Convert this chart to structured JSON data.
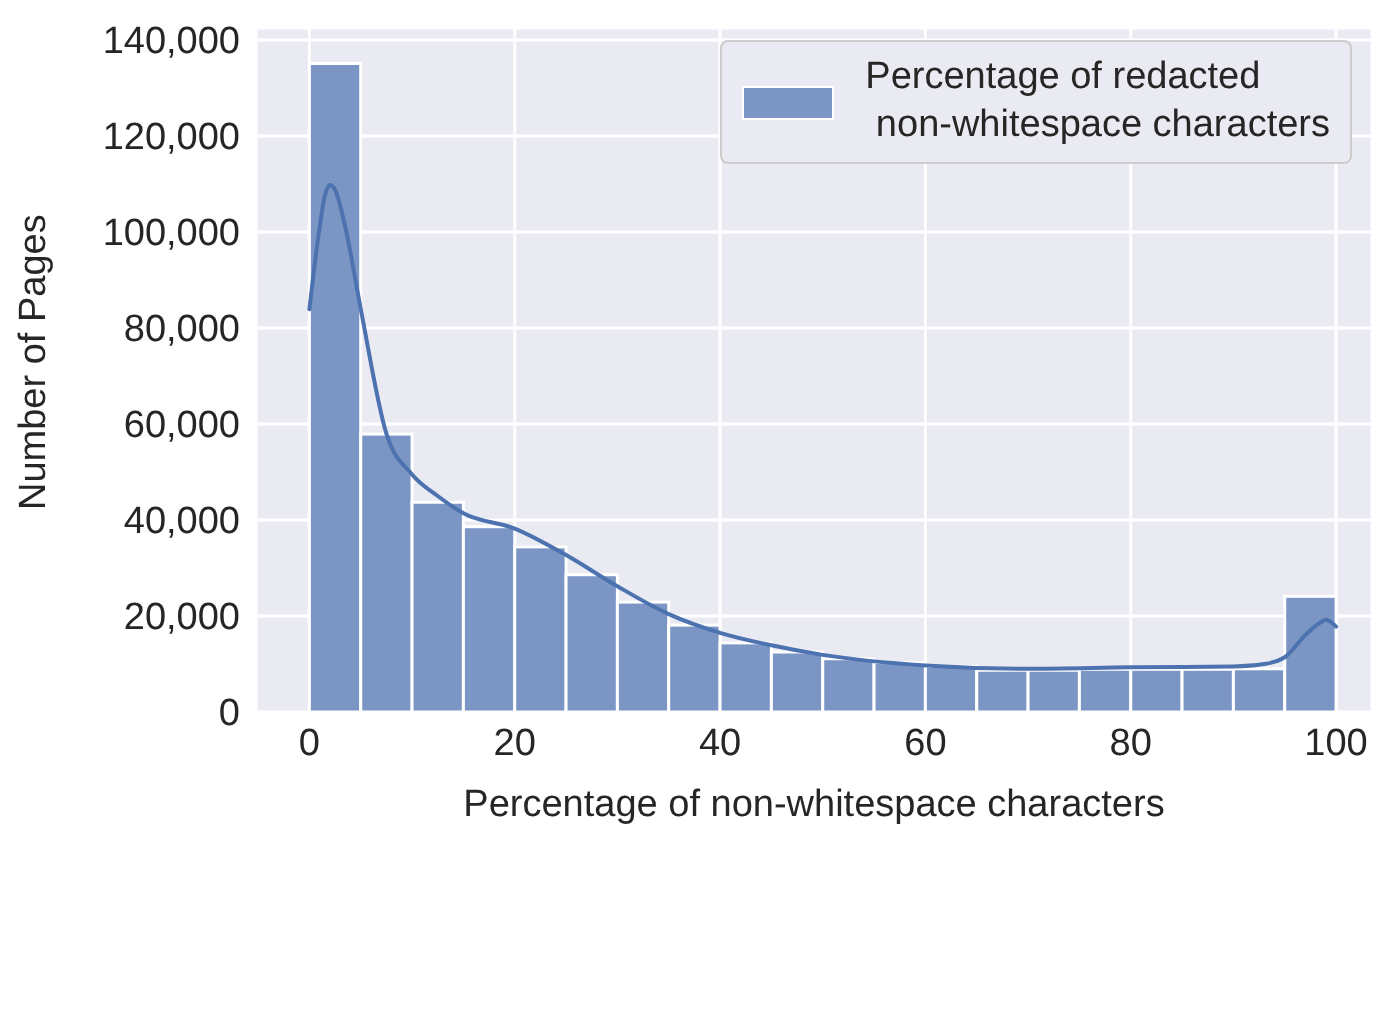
{
  "chart_data": {
    "type": "histogram",
    "xlabel": "Percentage of non-whitespace characters",
    "ylabel": "Number of Pages",
    "bins": [
      0,
      5,
      10,
      15,
      20,
      25,
      30,
      35,
      40,
      45,
      50,
      55,
      60,
      65,
      70,
      75,
      80,
      85,
      90,
      95,
      100
    ],
    "series": [
      {
        "name": "Percentage of redacted\n non-whitespace characters",
        "color": "#7b96c4",
        "values": [
          135100,
          57900,
          43700,
          38600,
          34400,
          28600,
          22900,
          18100,
          14400,
          12500,
          11100,
          10300,
          9500,
          8700,
          8700,
          8900,
          8900,
          8900,
          9000,
          24100
        ]
      },
      {
        "type": "line",
        "color": "#4c72b0",
        "x": [
          0,
          1,
          1.5,
          2,
          2.5,
          3.5,
          5,
          7.5,
          10,
          12.5,
          15,
          20,
          25,
          30,
          35,
          40,
          45,
          50,
          60,
          70,
          80,
          90,
          93,
          95,
          97,
          98.5,
          99,
          100
        ],
        "values": [
          83900,
          101000,
          107500,
          109800,
          108800,
          101000,
          84000,
          58000,
          49500,
          45000,
          41400,
          38200,
          32700,
          26200,
          20400,
          16500,
          13900,
          11900,
          9700,
          9000,
          9300,
          9500,
          10000,
          11400,
          16000,
          18700,
          19200,
          17800
        ]
      }
    ],
    "xlim": [
      -5.2,
      103.5
    ],
    "xticks": [
      0,
      20,
      40,
      60,
      80,
      100
    ],
    "ylim": [
      0,
      142500
    ],
    "yticks": [
      0,
      {
        "value": 20000,
        "label": "20,000"
      },
      {
        "value": 40000,
        "label": "40,000"
      },
      {
        "value": 60000,
        "label": "60,000"
      },
      {
        "value": 80000,
        "label": "80,000"
      },
      {
        "value": 100000,
        "label": "100,000"
      },
      {
        "value": 120000,
        "label": "120,000"
      },
      {
        "value": 140000,
        "label": "140,000"
      }
    ],
    "grid": true,
    "legend": "top right"
  }
}
